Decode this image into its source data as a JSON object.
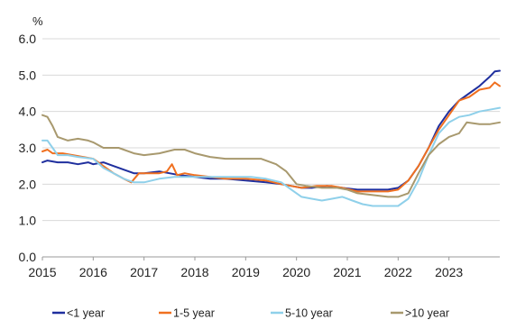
{
  "chart_data": {
    "type": "line",
    "ylabel": "%",
    "ylim": [
      0,
      6
    ],
    "y_ticks": [
      "0.0",
      "1.0",
      "2.0",
      "3.0",
      "4.0",
      "5.0",
      "6.0"
    ],
    "xlim": [
      2015,
      2024
    ],
    "x_ticks": [
      "2015",
      "2016",
      "2017",
      "2018",
      "2019",
      "2020",
      "2021",
      "2022",
      "2023"
    ],
    "grid": "horizontal",
    "legend": "bottom",
    "series": [
      {
        "name": "<1 year",
        "color": "#1f2f9e",
        "points": [
          [
            2015.0,
            2.6
          ],
          [
            2015.1,
            2.65
          ],
          [
            2015.3,
            2.6
          ],
          [
            2015.5,
            2.6
          ],
          [
            2015.7,
            2.55
          ],
          [
            2015.9,
            2.6
          ],
          [
            2016.0,
            2.55
          ],
          [
            2016.2,
            2.6
          ],
          [
            2016.4,
            2.5
          ],
          [
            2016.6,
            2.4
          ],
          [
            2016.8,
            2.3
          ],
          [
            2017.0,
            2.3
          ],
          [
            2017.3,
            2.35
          ],
          [
            2017.5,
            2.3
          ],
          [
            2017.7,
            2.25
          ],
          [
            2018.0,
            2.2
          ],
          [
            2018.3,
            2.15
          ],
          [
            2018.6,
            2.15
          ],
          [
            2019.0,
            2.1
          ],
          [
            2019.4,
            2.05
          ],
          [
            2019.7,
            2.0
          ],
          [
            2019.9,
            1.95
          ],
          [
            2020.1,
            1.9
          ],
          [
            2020.3,
            1.9
          ],
          [
            2020.6,
            1.95
          ],
          [
            2020.9,
            1.9
          ],
          [
            2021.2,
            1.85
          ],
          [
            2021.5,
            1.85
          ],
          [
            2021.8,
            1.85
          ],
          [
            2022.0,
            1.9
          ],
          [
            2022.2,
            2.1
          ],
          [
            2022.4,
            2.5
          ],
          [
            2022.6,
            3.0
          ],
          [
            2022.8,
            3.6
          ],
          [
            2023.0,
            4.0
          ],
          [
            2023.2,
            4.3
          ],
          [
            2023.4,
            4.5
          ],
          [
            2023.6,
            4.7
          ],
          [
            2023.8,
            4.95
          ],
          [
            2023.9,
            5.1
          ],
          [
            2024.0,
            5.12
          ]
        ]
      },
      {
        "name": "1-5 year",
        "color": "#f07020",
        "points": [
          [
            2015.0,
            2.9
          ],
          [
            2015.1,
            2.95
          ],
          [
            2015.2,
            2.85
          ],
          [
            2015.4,
            2.85
          ],
          [
            2015.6,
            2.8
          ],
          [
            2015.8,
            2.75
          ],
          [
            2016.0,
            2.7
          ],
          [
            2016.2,
            2.5
          ],
          [
            2016.4,
            2.3
          ],
          [
            2016.6,
            2.15
          ],
          [
            2016.75,
            2.05
          ],
          [
            2016.9,
            2.3
          ],
          [
            2017.1,
            2.3
          ],
          [
            2017.3,
            2.3
          ],
          [
            2017.45,
            2.35
          ],
          [
            2017.55,
            2.55
          ],
          [
            2017.65,
            2.25
          ],
          [
            2017.8,
            2.3
          ],
          [
            2018.0,
            2.25
          ],
          [
            2018.3,
            2.2
          ],
          [
            2018.6,
            2.15
          ],
          [
            2019.0,
            2.15
          ],
          [
            2019.4,
            2.1
          ],
          [
            2019.7,
            2.0
          ],
          [
            2019.9,
            1.95
          ],
          [
            2020.1,
            1.9
          ],
          [
            2020.4,
            1.95
          ],
          [
            2020.7,
            1.95
          ],
          [
            2020.9,
            1.9
          ],
          [
            2021.2,
            1.8
          ],
          [
            2021.5,
            1.8
          ],
          [
            2021.8,
            1.8
          ],
          [
            2022.0,
            1.85
          ],
          [
            2022.2,
            2.1
          ],
          [
            2022.4,
            2.5
          ],
          [
            2022.6,
            3.0
          ],
          [
            2022.8,
            3.5
          ],
          [
            2023.0,
            3.9
          ],
          [
            2023.2,
            4.3
          ],
          [
            2023.4,
            4.4
          ],
          [
            2023.6,
            4.6
          ],
          [
            2023.8,
            4.65
          ],
          [
            2023.9,
            4.8
          ],
          [
            2024.0,
            4.7
          ]
        ]
      },
      {
        "name": "5-10 year",
        "color": "#8fd0ea",
        "points": [
          [
            2015.0,
            3.2
          ],
          [
            2015.1,
            3.2
          ],
          [
            2015.2,
            3.0
          ],
          [
            2015.3,
            2.8
          ],
          [
            2015.5,
            2.8
          ],
          [
            2015.7,
            2.75
          ],
          [
            2016.0,
            2.7
          ],
          [
            2016.2,
            2.45
          ],
          [
            2016.4,
            2.3
          ],
          [
            2016.6,
            2.15
          ],
          [
            2016.8,
            2.05
          ],
          [
            2017.0,
            2.05
          ],
          [
            2017.3,
            2.15
          ],
          [
            2017.6,
            2.2
          ],
          [
            2017.9,
            2.2
          ],
          [
            2018.2,
            2.2
          ],
          [
            2018.5,
            2.2
          ],
          [
            2018.8,
            2.2
          ],
          [
            2019.1,
            2.2
          ],
          [
            2019.4,
            2.15
          ],
          [
            2019.7,
            2.05
          ],
          [
            2019.9,
            1.85
          ],
          [
            2020.1,
            1.65
          ],
          [
            2020.3,
            1.6
          ],
          [
            2020.5,
            1.55
          ],
          [
            2020.7,
            1.6
          ],
          [
            2020.9,
            1.65
          ],
          [
            2021.1,
            1.55
          ],
          [
            2021.3,
            1.45
          ],
          [
            2021.5,
            1.4
          ],
          [
            2021.8,
            1.4
          ],
          [
            2022.0,
            1.4
          ],
          [
            2022.2,
            1.6
          ],
          [
            2022.4,
            2.1
          ],
          [
            2022.6,
            2.8
          ],
          [
            2022.8,
            3.4
          ],
          [
            2023.0,
            3.7
          ],
          [
            2023.2,
            3.85
          ],
          [
            2023.4,
            3.9
          ],
          [
            2023.6,
            4.0
          ],
          [
            2023.8,
            4.05
          ],
          [
            2024.0,
            4.1
          ]
        ]
      },
      {
        "name": ">10 year",
        "color": "#a8996e",
        "points": [
          [
            2015.0,
            3.9
          ],
          [
            2015.1,
            3.85
          ],
          [
            2015.2,
            3.6
          ],
          [
            2015.3,
            3.3
          ],
          [
            2015.5,
            3.2
          ],
          [
            2015.7,
            3.25
          ],
          [
            2015.9,
            3.2
          ],
          [
            2016.0,
            3.15
          ],
          [
            2016.2,
            3.0
          ],
          [
            2016.5,
            3.0
          ],
          [
            2016.8,
            2.85
          ],
          [
            2017.0,
            2.8
          ],
          [
            2017.3,
            2.85
          ],
          [
            2017.6,
            2.95
          ],
          [
            2017.8,
            2.95
          ],
          [
            2018.0,
            2.85
          ],
          [
            2018.3,
            2.75
          ],
          [
            2018.6,
            2.7
          ],
          [
            2019.0,
            2.7
          ],
          [
            2019.3,
            2.7
          ],
          [
            2019.6,
            2.55
          ],
          [
            2019.8,
            2.35
          ],
          [
            2020.0,
            2.0
          ],
          [
            2020.2,
            1.95
          ],
          [
            2020.5,
            1.9
          ],
          [
            2020.8,
            1.9
          ],
          [
            2021.0,
            1.85
          ],
          [
            2021.2,
            1.75
          ],
          [
            2021.5,
            1.7
          ],
          [
            2021.8,
            1.65
          ],
          [
            2022.0,
            1.65
          ],
          [
            2022.2,
            1.75
          ],
          [
            2022.4,
            2.3
          ],
          [
            2022.6,
            2.8
          ],
          [
            2022.8,
            3.1
          ],
          [
            2023.0,
            3.3
          ],
          [
            2023.2,
            3.4
          ],
          [
            2023.35,
            3.7
          ],
          [
            2023.6,
            3.65
          ],
          [
            2023.8,
            3.65
          ],
          [
            2024.0,
            3.7
          ]
        ]
      }
    ]
  }
}
